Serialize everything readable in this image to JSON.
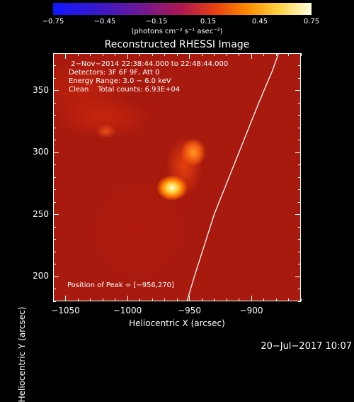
{
  "colorbar": {
    "ticks": [
      "−0.75",
      "−0.45",
      "−0.15",
      "0.15",
      "0.45",
      "0.75"
    ],
    "units": "(photons cm⁻² s⁻¹ asec⁻²)"
  },
  "title": "Reconstructed RHESSI Image",
  "info_lines": [
    " 2−Nov−2014 22:38:44.000 to 22:48:44.000",
    "Detectors: 3F 6F 9F, Att 0",
    "Energy Range: 3.0 − 6.0 keV",
    "Clean    Total counts: 6.93E+04"
  ],
  "peak_text": "Position of Peak = [−956,270]",
  "timestamp": "20−Jul−2017 10:07",
  "chart_data": {
    "type": "heatmap",
    "title": "Reconstructed RHESSI Image",
    "xlabel": "Heliocentric X (arcsec)",
    "ylabel": "Heliocentric Y (arcsec)",
    "xlim": [
      -1060,
      -860
    ],
    "ylim": [
      180,
      380
    ],
    "x_ticks": [
      -1050,
      -1000,
      -950,
      -900
    ],
    "y_ticks": [
      200,
      250,
      300,
      350
    ],
    "x_tick_labels": [
      "−1050",
      "−1000",
      "−950",
      "−900"
    ],
    "y_tick_labels": [
      "200",
      "250",
      "300",
      "350"
    ],
    "colorbar_range": [
      -0.75,
      0.75
    ],
    "colormap": "hot",
    "peak": {
      "x": -956,
      "y": 270
    },
    "limb_points": [
      [
        -952,
        180
      ],
      [
        -946,
        200
      ],
      [
        -938,
        225
      ],
      [
        -930,
        250
      ],
      [
        -918,
        280
      ],
      [
        -906,
        310
      ],
      [
        -894,
        340
      ],
      [
        -883,
        366
      ],
      [
        -878,
        380
      ]
    ],
    "colors": {
      "limb": "#ffffff",
      "background": "#000000",
      "frame": "#ffffff"
    }
  }
}
